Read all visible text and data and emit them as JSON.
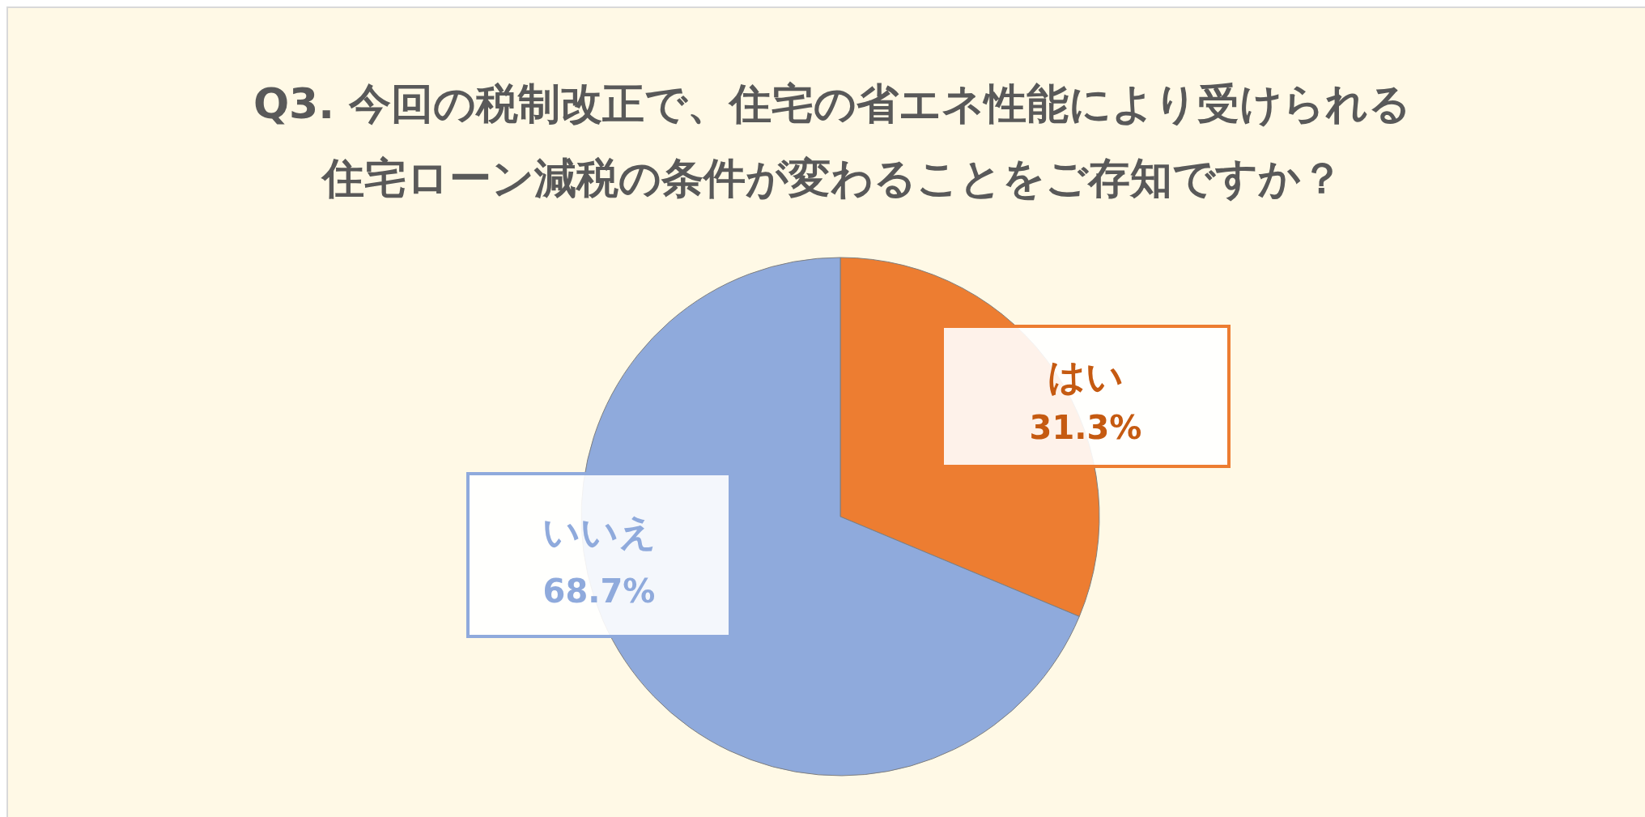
{
  "chart_data": {
    "type": "pie",
    "title": "Q3. 今回の税制改正で、住宅の省エネ性能により受けられる",
    "subtitle": "住宅ローン減税の条件が変わることをご存知ですか？",
    "categories": [
      "はい",
      "いいえ"
    ],
    "values": [
      31.3,
      68.7
    ],
    "colors": [
      "#ed7d31",
      "#8faadc"
    ],
    "value_labels": [
      "31.3%",
      "68.7%"
    ],
    "legend": false
  }
}
